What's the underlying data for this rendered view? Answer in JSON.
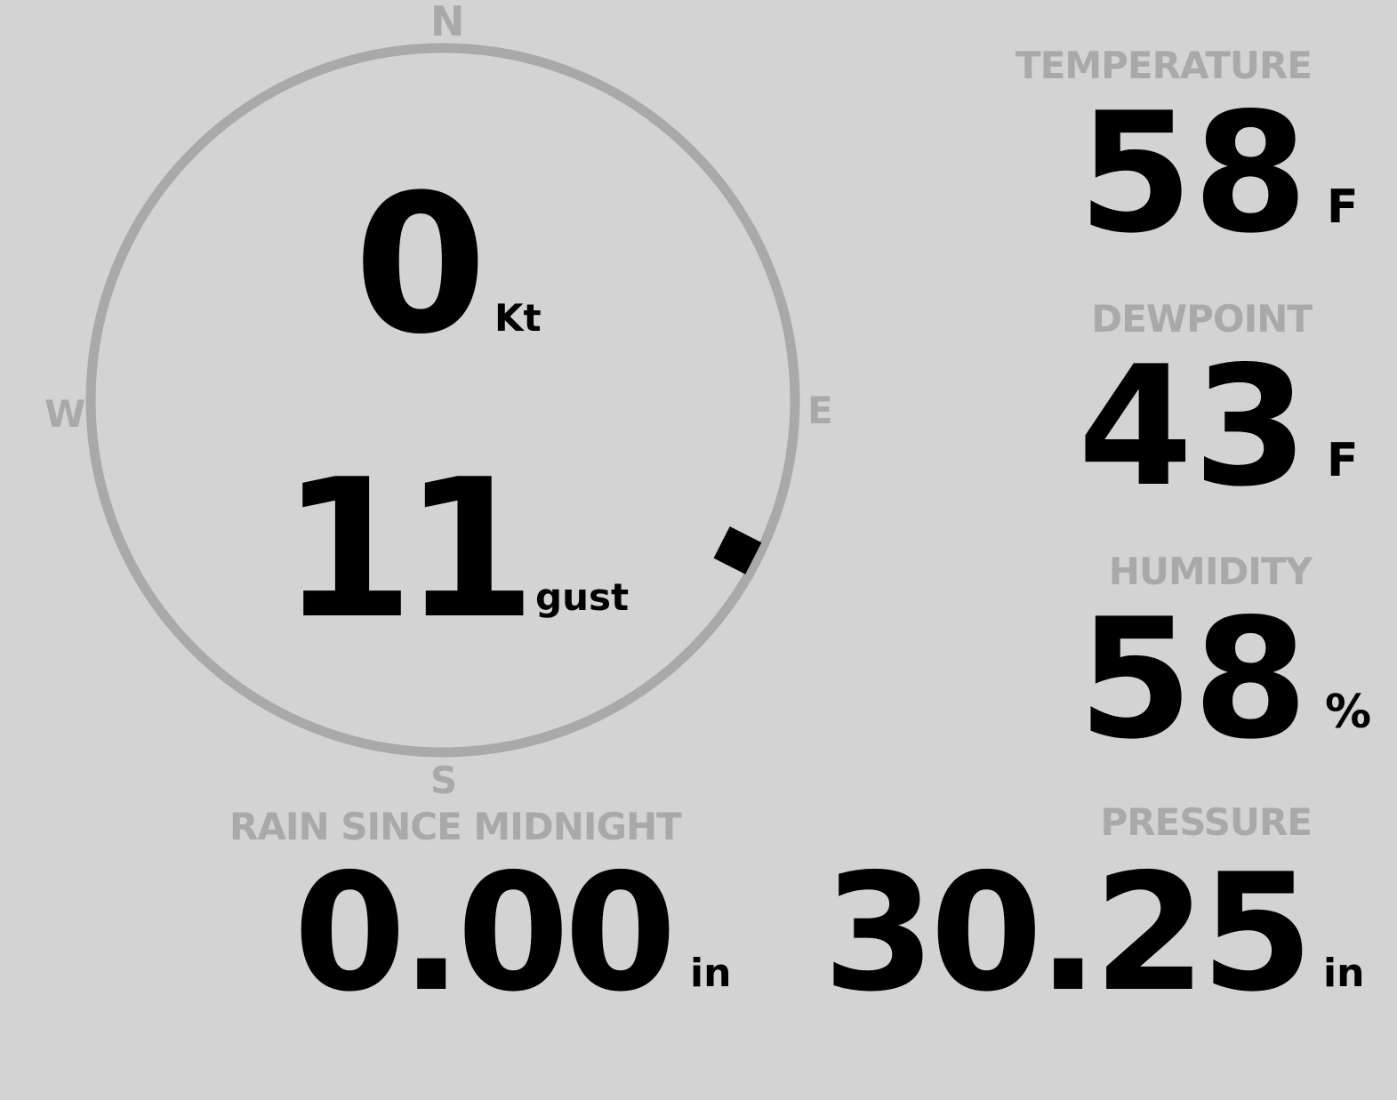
{
  "wind": {
    "compass_labels": {
      "n": "N",
      "e": "E",
      "s": "S",
      "w": "W"
    },
    "speed": "0",
    "speed_unit": "Kt",
    "gust": "11",
    "gust_unit": "gust",
    "direction_deg": 117
  },
  "temperature": {
    "label": "TEMPERATURE",
    "value": "58",
    "unit": "F"
  },
  "dewpoint": {
    "label": "DEWPOINT",
    "value": "43",
    "unit": "F"
  },
  "humidity": {
    "label": "HUMIDITY",
    "value": "58",
    "unit": "%"
  },
  "rain": {
    "label": "RAIN SINCE MIDNIGHT",
    "value": "0.00",
    "unit": "in"
  },
  "pressure": {
    "label": "PRESSURE",
    "value": "30.25",
    "unit": "in"
  },
  "colors": {
    "background": "#d3d3d3",
    "muted": "#a9a9a9",
    "text": "#000000"
  }
}
